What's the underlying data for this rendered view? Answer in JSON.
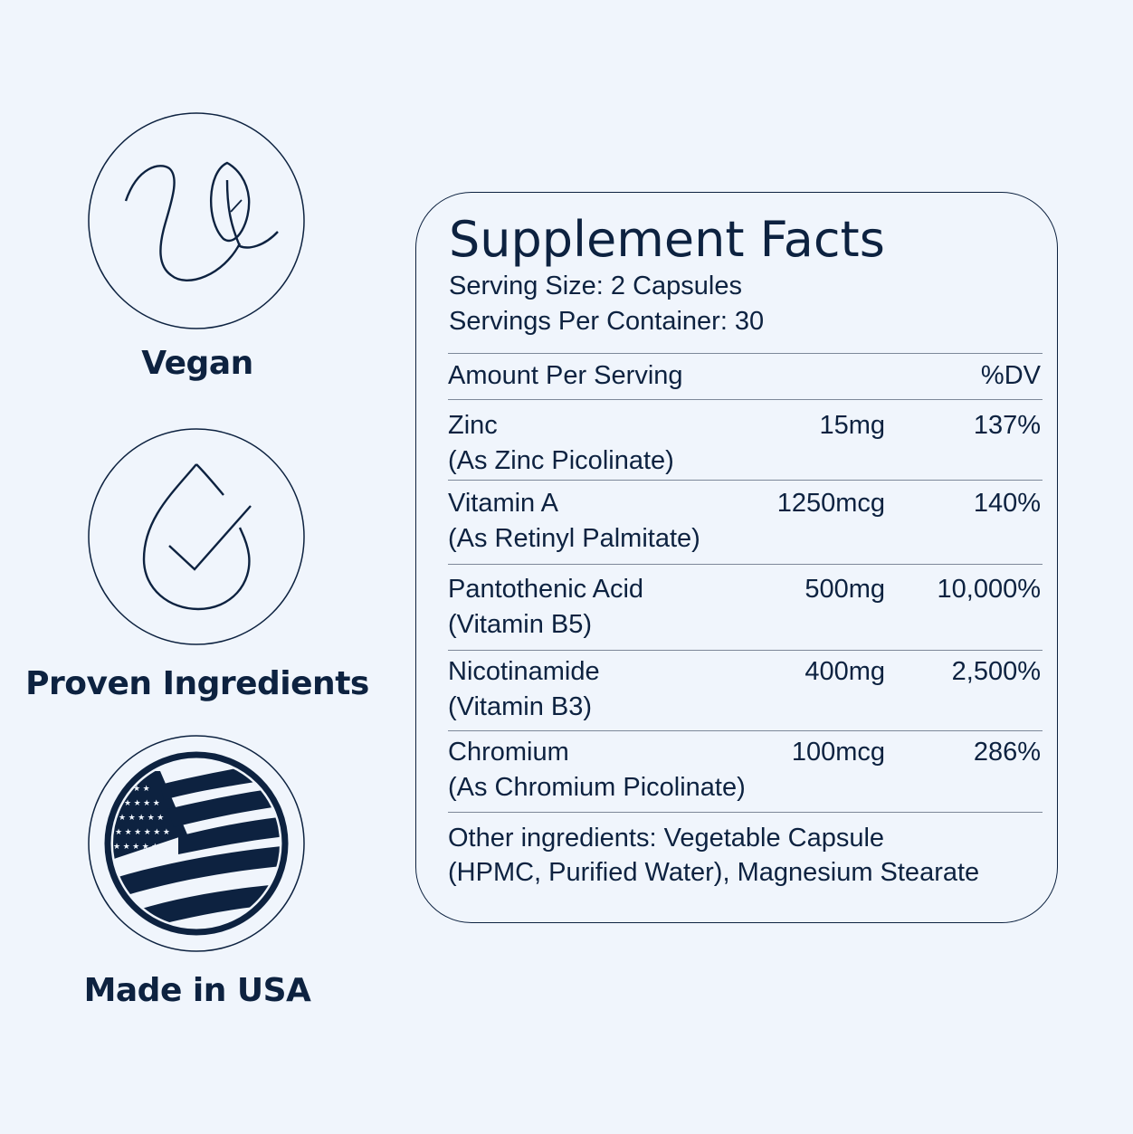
{
  "badges": [
    {
      "label": "Vegan",
      "icon": "vegan-leaf-icon"
    },
    {
      "label": "Proven Ingredients",
      "icon": "drop-check-icon"
    },
    {
      "label": "Made in USA",
      "icon": "usa-flag-icon"
    }
  ],
  "facts": {
    "title": "Supplement Facts",
    "serving_size": "Serving Size: 2 Capsules",
    "servings_per_container": "Servings Per Container: 30",
    "header": {
      "label": "Amount Per Serving",
      "dv": "%DV"
    },
    "rows": [
      {
        "name": "Zinc",
        "detail": "(As Zinc Picolinate)",
        "amount": "15mg",
        "dv": "137%"
      },
      {
        "name": "Vitamin A",
        "detail": "(As Retinyl Palmitate)",
        "amount": "1250mcg",
        "dv": "140%"
      },
      {
        "name": "Pantothenic Acid",
        "detail": "(Vitamin B5)",
        "amount": "500mg",
        "dv": "10,000%"
      },
      {
        "name": "Nicotinamide",
        "detail": "(Vitamin B3)",
        "amount": "400mg",
        "dv": "2,500%"
      },
      {
        "name": "Chromium",
        "detail": "(As Chromium Picolinate)",
        "amount": "100mcg",
        "dv": "286%"
      }
    ],
    "other_1": "Other ingredients: Vegetable Capsule",
    "other_2": "(HPMC, Purified Water), Magnesium Stearate"
  },
  "colors": {
    "background": "#f0f5fc",
    "navy": "#0d2240"
  }
}
